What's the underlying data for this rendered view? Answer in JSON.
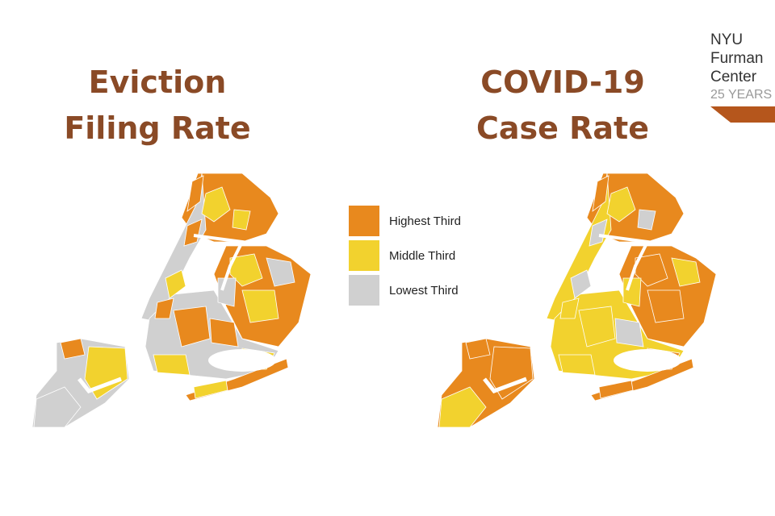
{
  "maps": [
    {
      "title_line1": "Eviction",
      "title_line2": "Filing Rate"
    },
    {
      "title_line1": "COVID-19",
      "title_line2": "Case Rate"
    }
  ],
  "legend": [
    {
      "label": "Highest Third",
      "color": "#e8891e"
    },
    {
      "label": "Middle Third",
      "color": "#f2d22e"
    },
    {
      "label": "Lowest Third",
      "color": "#d0d0d0"
    }
  ],
  "logo": {
    "line1": "NYU",
    "line2": "Furman",
    "line3": "Center",
    "line4": "25 YEARS"
  }
}
